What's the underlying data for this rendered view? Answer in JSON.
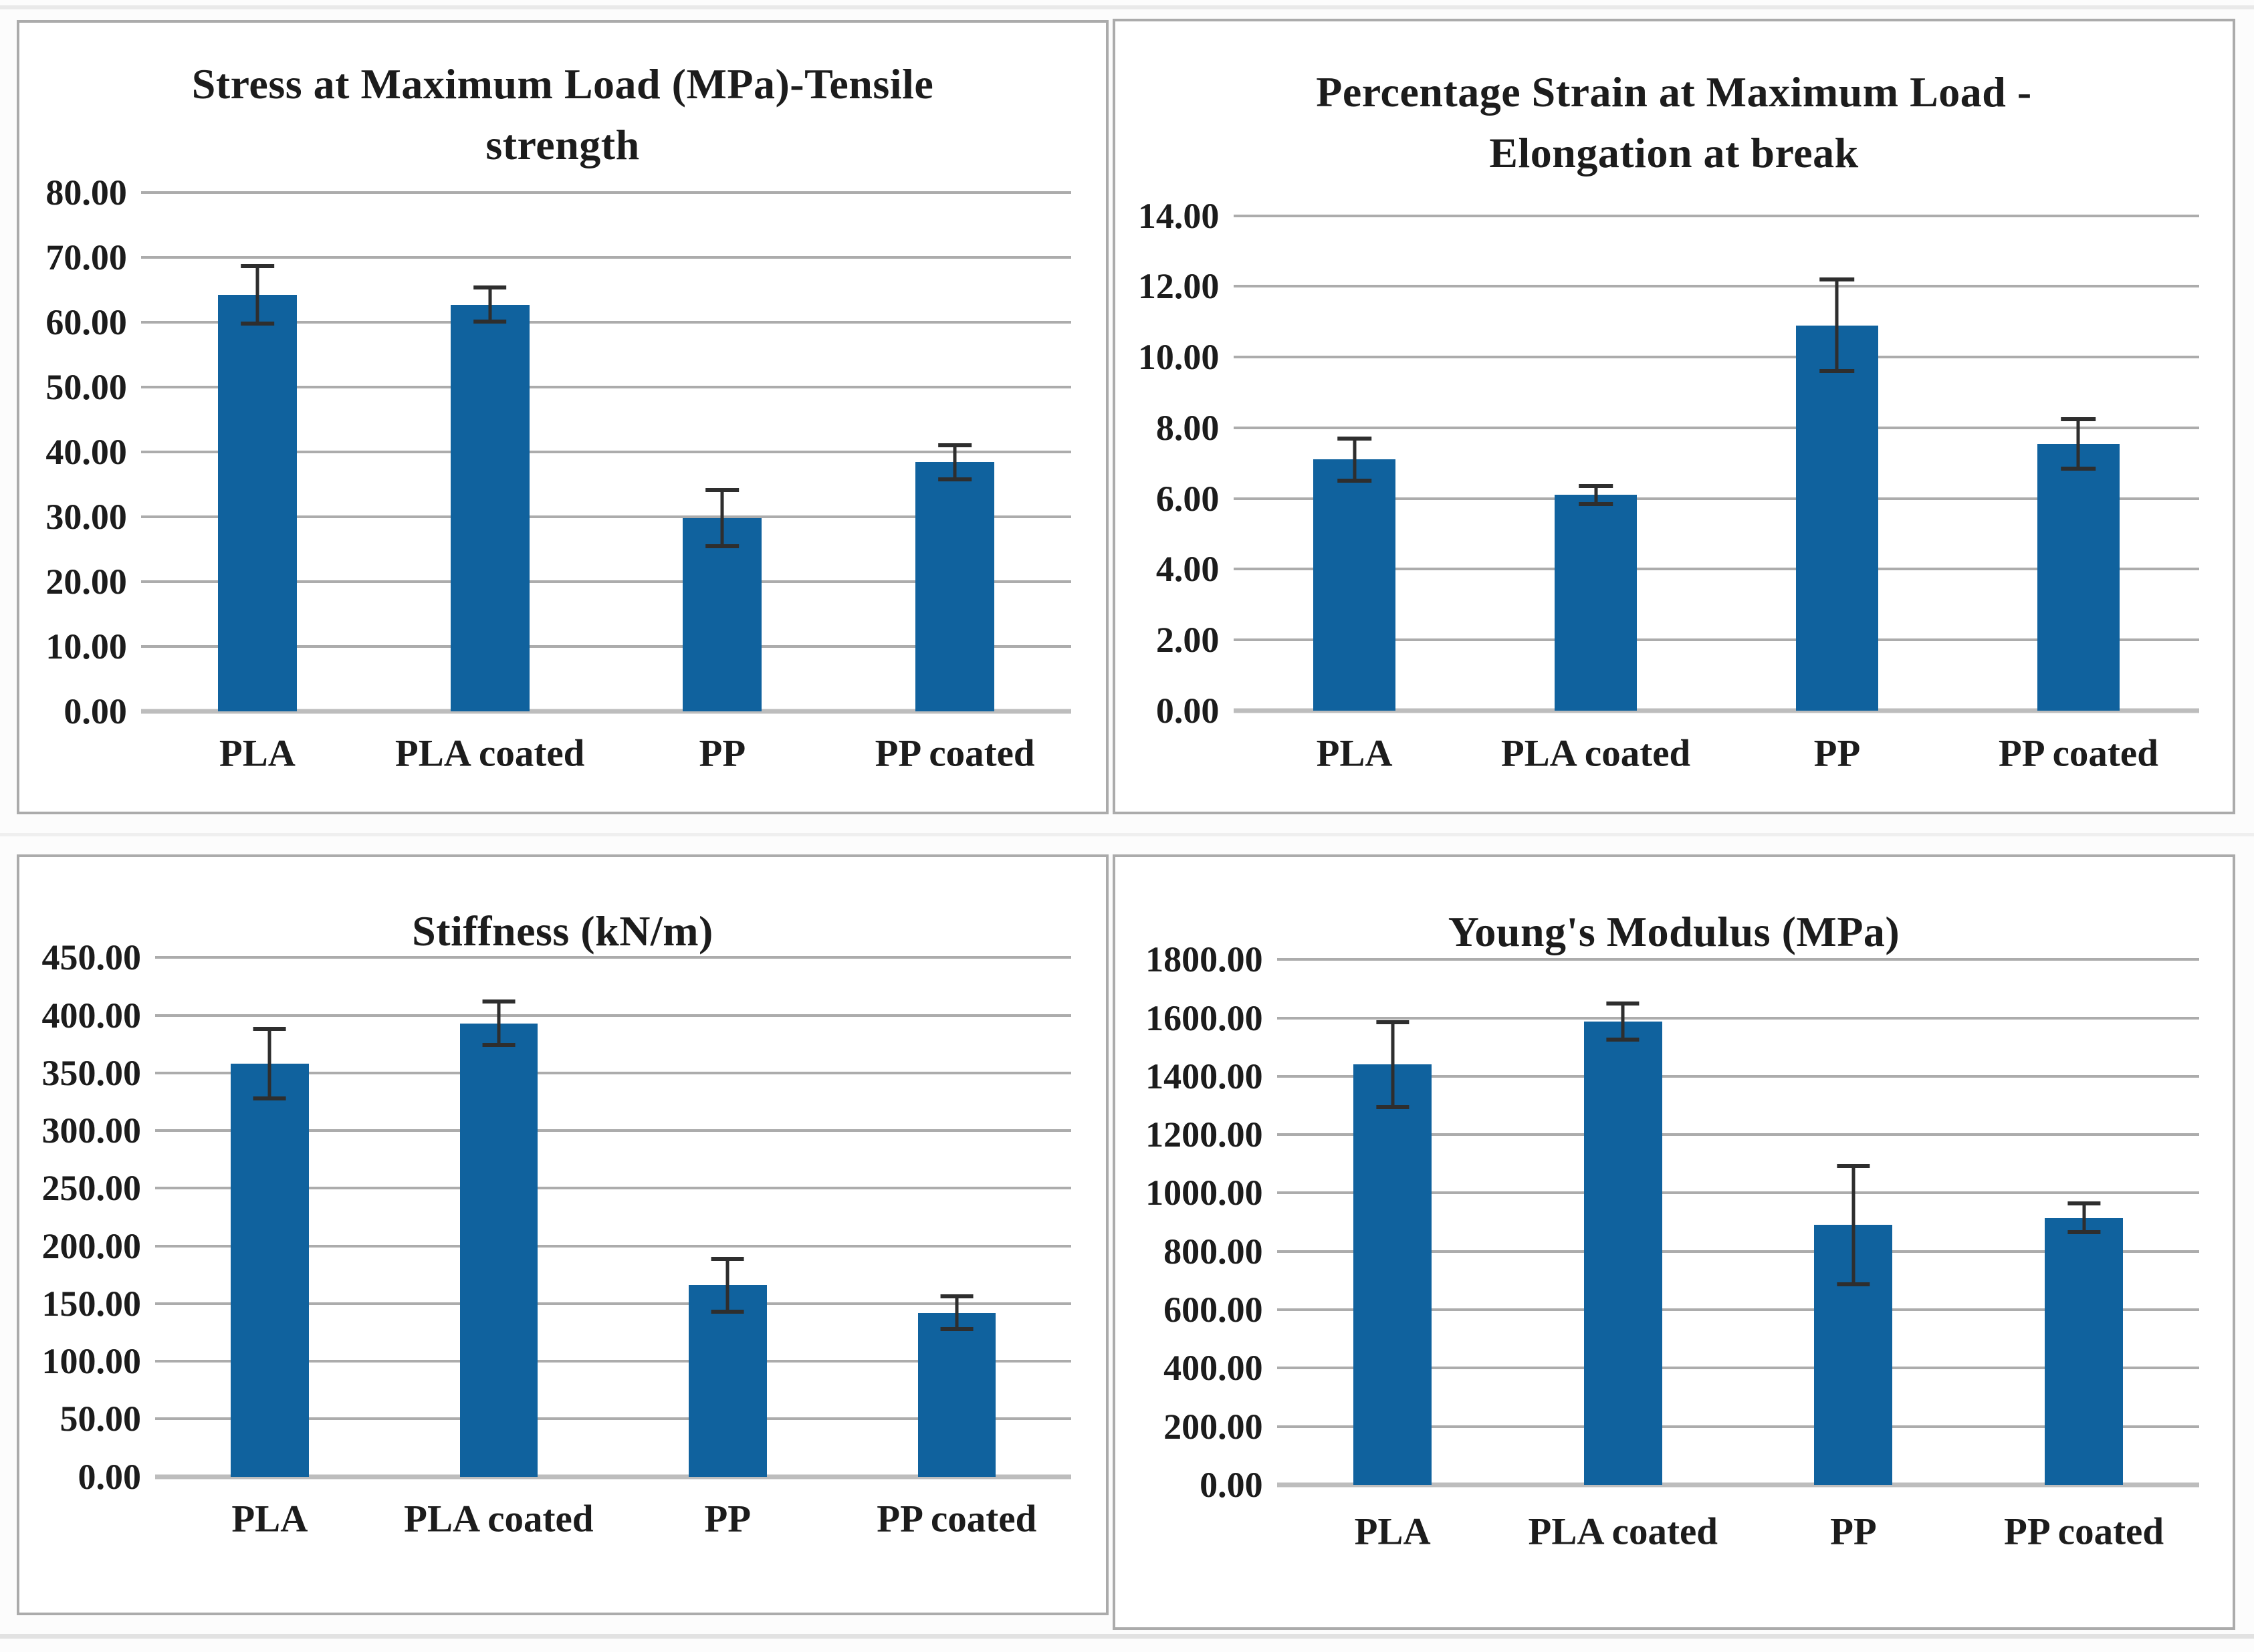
{
  "figure": {
    "bar_color": "#10629e",
    "grid_color": "#acacac",
    "axis_color": "#bdbdbd",
    "panel_border_color": "#ababab",
    "text_color": "#1c1c1c",
    "error_bar_color": "#2e2e2e",
    "background": "#ffffff"
  },
  "chart_data": [
    {
      "type": "bar",
      "title": "Stress at Maximum Load (MPa)-Tensile strength",
      "title_lines": [
        "Stress at Maximum Load (MPa)-Tensile",
        "strength"
      ],
      "categories": [
        "PLA",
        "PLA coated",
        "PP",
        "PP coated"
      ],
      "values": [
        64.2,
        62.7,
        29.8,
        38.4
      ],
      "errors": [
        4.4,
        2.6,
        4.3,
        2.6
      ],
      "xlabel": "",
      "ylabel": "",
      "ylim": [
        0,
        80
      ],
      "ystep": 10,
      "tick_decimals": 2,
      "grid": true,
      "legend": false
    },
    {
      "type": "bar",
      "title": "Percentage Strain at Maximum Load - Elongation at break",
      "title_lines": [
        "Percentage Strain at Maximum Load -",
        "Elongation at break"
      ],
      "categories": [
        "PLA",
        "PLA coated",
        "PP",
        "PP coated"
      ],
      "values": [
        7.1,
        6.1,
        10.9,
        7.55
      ],
      "errors": [
        0.6,
        0.25,
        1.3,
        0.7
      ],
      "xlabel": "",
      "ylabel": "",
      "ylim": [
        0,
        14
      ],
      "ystep": 2,
      "tick_decimals": 2,
      "grid": true,
      "legend": false
    },
    {
      "type": "bar",
      "title": "Stiffness (kN/m)",
      "title_lines": [
        "Stiffness (kN/m)"
      ],
      "categories": [
        "PLA",
        "PLA coated",
        "PP",
        "PP coated"
      ],
      "values": [
        358,
        393,
        166,
        142
      ],
      "errors": [
        30,
        19,
        23,
        14
      ],
      "xlabel": "",
      "ylabel": "",
      "ylim": [
        0,
        450
      ],
      "ystep": 50,
      "tick_decimals": 2,
      "grid": true,
      "legend": false
    },
    {
      "type": "bar",
      "title": "Young's Modulus (MPa)",
      "title_lines": [
        "Young's Modulus (MPa)"
      ],
      "categories": [
        "PLA",
        "PLA coated",
        "PP",
        "PP coated"
      ],
      "values": [
        1440,
        1588,
        890,
        915
      ],
      "errors": [
        145,
        62,
        202,
        50
      ],
      "xlabel": "",
      "ylabel": "",
      "ylim": [
        0,
        1800
      ],
      "ystep": 200,
      "tick_decimals": 2,
      "grid": true,
      "legend": false
    }
  ]
}
